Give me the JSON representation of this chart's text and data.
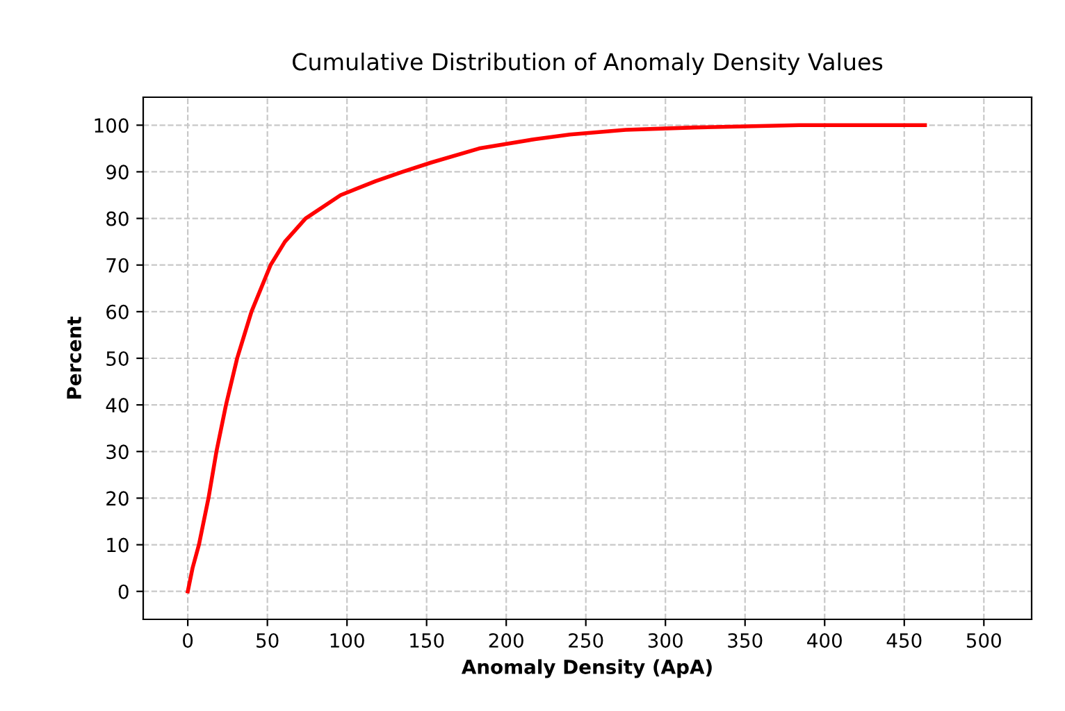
{
  "chart_data": {
    "type": "line",
    "title": "Cumulative Distribution of Anomaly Density Values",
    "xlabel": "Anomaly Density (ApA)",
    "ylabel": "Percent",
    "series": [
      {
        "color": "#ff0000",
        "x": [
          0,
          3,
          7,
          13,
          18,
          24,
          31,
          40,
          52,
          61,
          74,
          96,
          118,
          135,
          153,
          183,
          218,
          240,
          275,
          318,
          384,
          463
        ],
        "values": [
          0,
          5,
          10,
          20,
          30,
          40,
          50,
          60,
          70,
          75,
          80,
          85,
          88,
          90,
          92,
          95,
          97,
          98,
          99,
          99.5,
          100,
          100
        ]
      }
    ],
    "xlim": [
      -28,
      530
    ],
    "xticks": [
      0,
      50,
      100,
      150,
      200,
      250,
      300,
      350,
      400,
      450,
      500
    ],
    "ylim": [
      -6,
      106
    ],
    "yticks": [
      0,
      10,
      20,
      30,
      40,
      50,
      60,
      70,
      80,
      90,
      100
    ],
    "grid": true,
    "marker": "none",
    "line_style": "solid"
  }
}
